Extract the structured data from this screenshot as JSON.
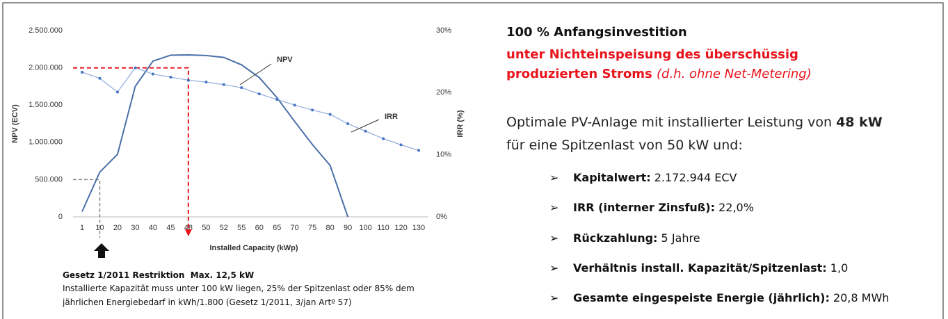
{
  "chart_data": {
    "type": "line",
    "categories": [
      "1",
      "10",
      "20",
      "30",
      "40",
      "45",
      "48",
      "50",
      "52",
      "55",
      "60",
      "65",
      "70",
      "75",
      "80",
      "90",
      "100",
      "110",
      "120",
      "130"
    ],
    "series": [
      {
        "name": "NPV",
        "color": "#4a6fa8",
        "values": [
          70000,
          600000,
          840000,
          1750000,
          2090000,
          2170000,
          2173000,
          2165000,
          2140000,
          2040000,
          1870000,
          1600000,
          1280000,
          970000,
          690000,
          0,
          null,
          null,
          null,
          null
        ]
      },
      {
        "name": "IRR",
        "color": "#8faadc",
        "axis": "y2",
        "values": [
          23.3,
          22.3,
          20.1,
          24.0,
          23.0,
          22.5,
          22.0,
          21.7,
          21.3,
          20.8,
          19.8,
          18.9,
          18.0,
          17.2,
          16.5,
          15.0,
          13.8,
          12.6,
          11.6,
          10.7
        ]
      }
    ],
    "ylim": [
      0,
      2500000
    ],
    "yticks": [
      0,
      {
        "value": 500000,
        "label": "500.000"
      },
      {
        "value": 1000000,
        "label": "1.000.000"
      },
      {
        "value": 1500000,
        "label": "1.500.000"
      },
      {
        "value": 2000000,
        "label": "2.000.000"
      },
      {
        "value": 2500000,
        "label": "2.500.000"
      }
    ],
    "y2lim": [
      0,
      30
    ],
    "y2ticks": [
      {
        "value": 0,
        "label": "0%"
      },
      {
        "value": 10,
        "label": "10%"
      },
      {
        "value": 20,
        "label": "20%"
      },
      {
        "value": 30,
        "label": "30%"
      }
    ],
    "xlabel": "Installed Capacity (kWp)",
    "ylabel": "NPV (ECV)",
    "y2label": "IRR (%)"
  },
  "slide": {
    "title": "100 % Anfangsinvestition",
    "subtitle_lines": [
      "unter Nichteinspeisung des überschüssig",
      "produzierten Stroms"
    ],
    "subtitle_note": "(d.h. ohne Net-Metering)",
    "intro": [
      "Optimale PV-Anlage mit installierter Leistung von",
      "48 kW",
      "für eine Spitzenlast von 50 kW und:"
    ],
    "bullets": [
      {
        "label": "Kapitalwert:",
        "value": "2.172.944 ECV"
      },
      {
        "label": "IRR (interner Zinsfuß):",
        "value": "22,0%"
      },
      {
        "label": "Rückzahlung:",
        "value": "5 Jahre"
      },
      {
        "label": "Verhältnis install. Kapazität/Spitzenlast:",
        "value": "1,0"
      },
      {
        "label": "Gesamte eingespeiste Energie (jährlich):",
        "value": "20,8 MWh"
      }
    ],
    "footnote": {
      "title": "Gesetz 1/2011 Restriktion  Max. 12,5 kW",
      "lines": [
        "Installierte Kapazität muss unter 100 kW liegen, 25% der Spitzenlast oder 85% dem",
        "jährlichen Energiebedarf in kWh/1.800 (Gesetz 1/2011, 3/jan Artº 57)"
      ]
    }
  }
}
